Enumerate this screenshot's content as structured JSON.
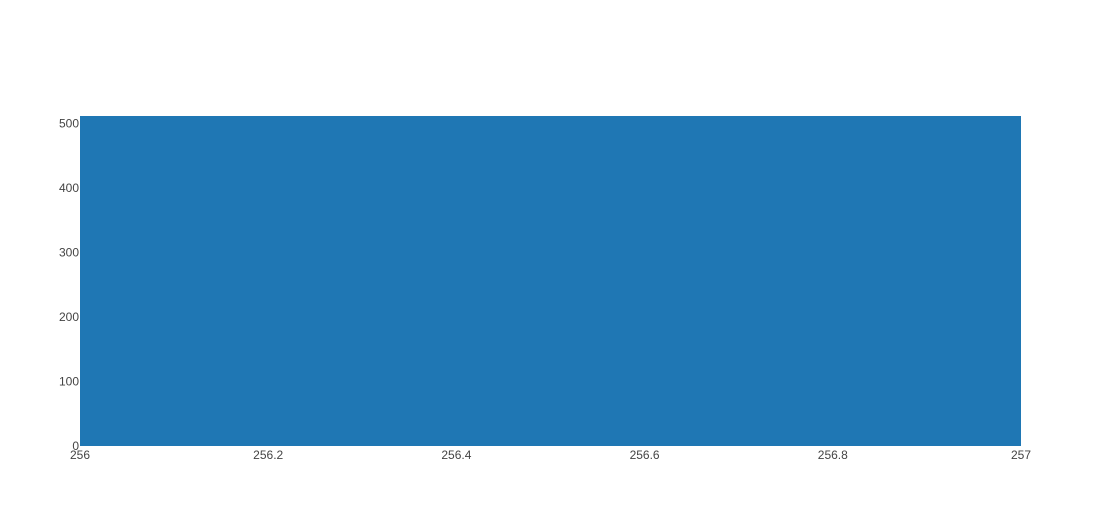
{
  "chart_data": {
    "type": "bar",
    "title": "",
    "xlabel": "",
    "ylabel": "",
    "x": [
      256.5
    ],
    "bar_width": 1,
    "values": [
      512
    ],
    "xlim": [
      256,
      257
    ],
    "ylim": [
      0,
      512
    ],
    "x_ticks": [
      256,
      256.2,
      256.4,
      256.6,
      256.8,
      257
    ],
    "x_tick_labels": [
      "256",
      "256.2",
      "256.4",
      "256.6",
      "256.8",
      "257"
    ],
    "y_ticks": [
      0,
      100,
      200,
      300,
      400,
      500
    ],
    "y_tick_labels": [
      "0",
      "100",
      "200",
      "300",
      "400",
      "500"
    ],
    "grid": false,
    "legend": false,
    "bar_color": "#1f77b4"
  }
}
